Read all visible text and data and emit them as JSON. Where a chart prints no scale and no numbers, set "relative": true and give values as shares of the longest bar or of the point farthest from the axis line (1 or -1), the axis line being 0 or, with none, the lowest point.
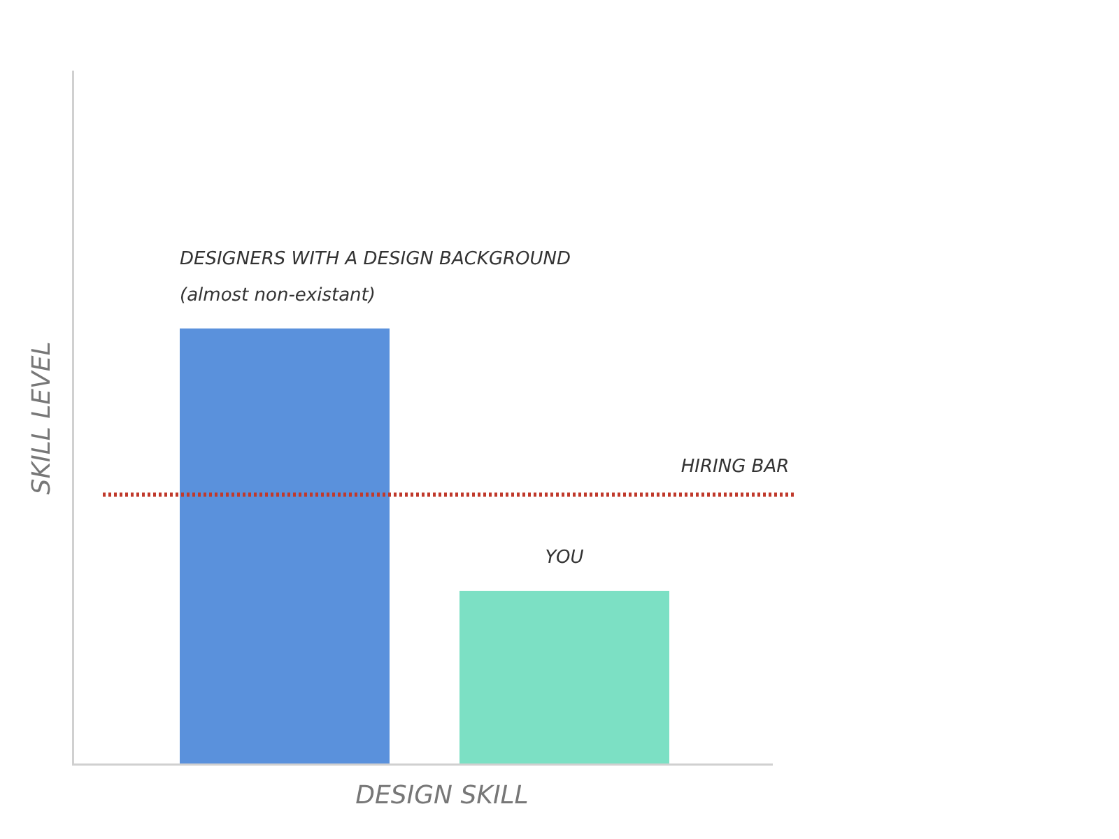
{
  "chart_data": {
    "type": "bar",
    "relative": true,
    "categories": [
      null,
      null
    ],
    "xlabel": "DESIGN SKILL",
    "ylabel": "SKILL LEVEL",
    "values": [
      1,
      0.4
    ],
    "colors": [
      "#5a91dc",
      "#7ce0c4"
    ],
    "annotations": [
      "DESIGNERS WITH A DESIGN BACKGROUND\n(almost non-existant)",
      "YOU"
    ],
    "ref_lines": [
      {
        "axis": "y",
        "value": 0.62,
        "label": "HIRING BAR",
        "color": "#c0392b",
        "line_style": "dotted"
      }
    ],
    "grid": false,
    "legend": false
  }
}
